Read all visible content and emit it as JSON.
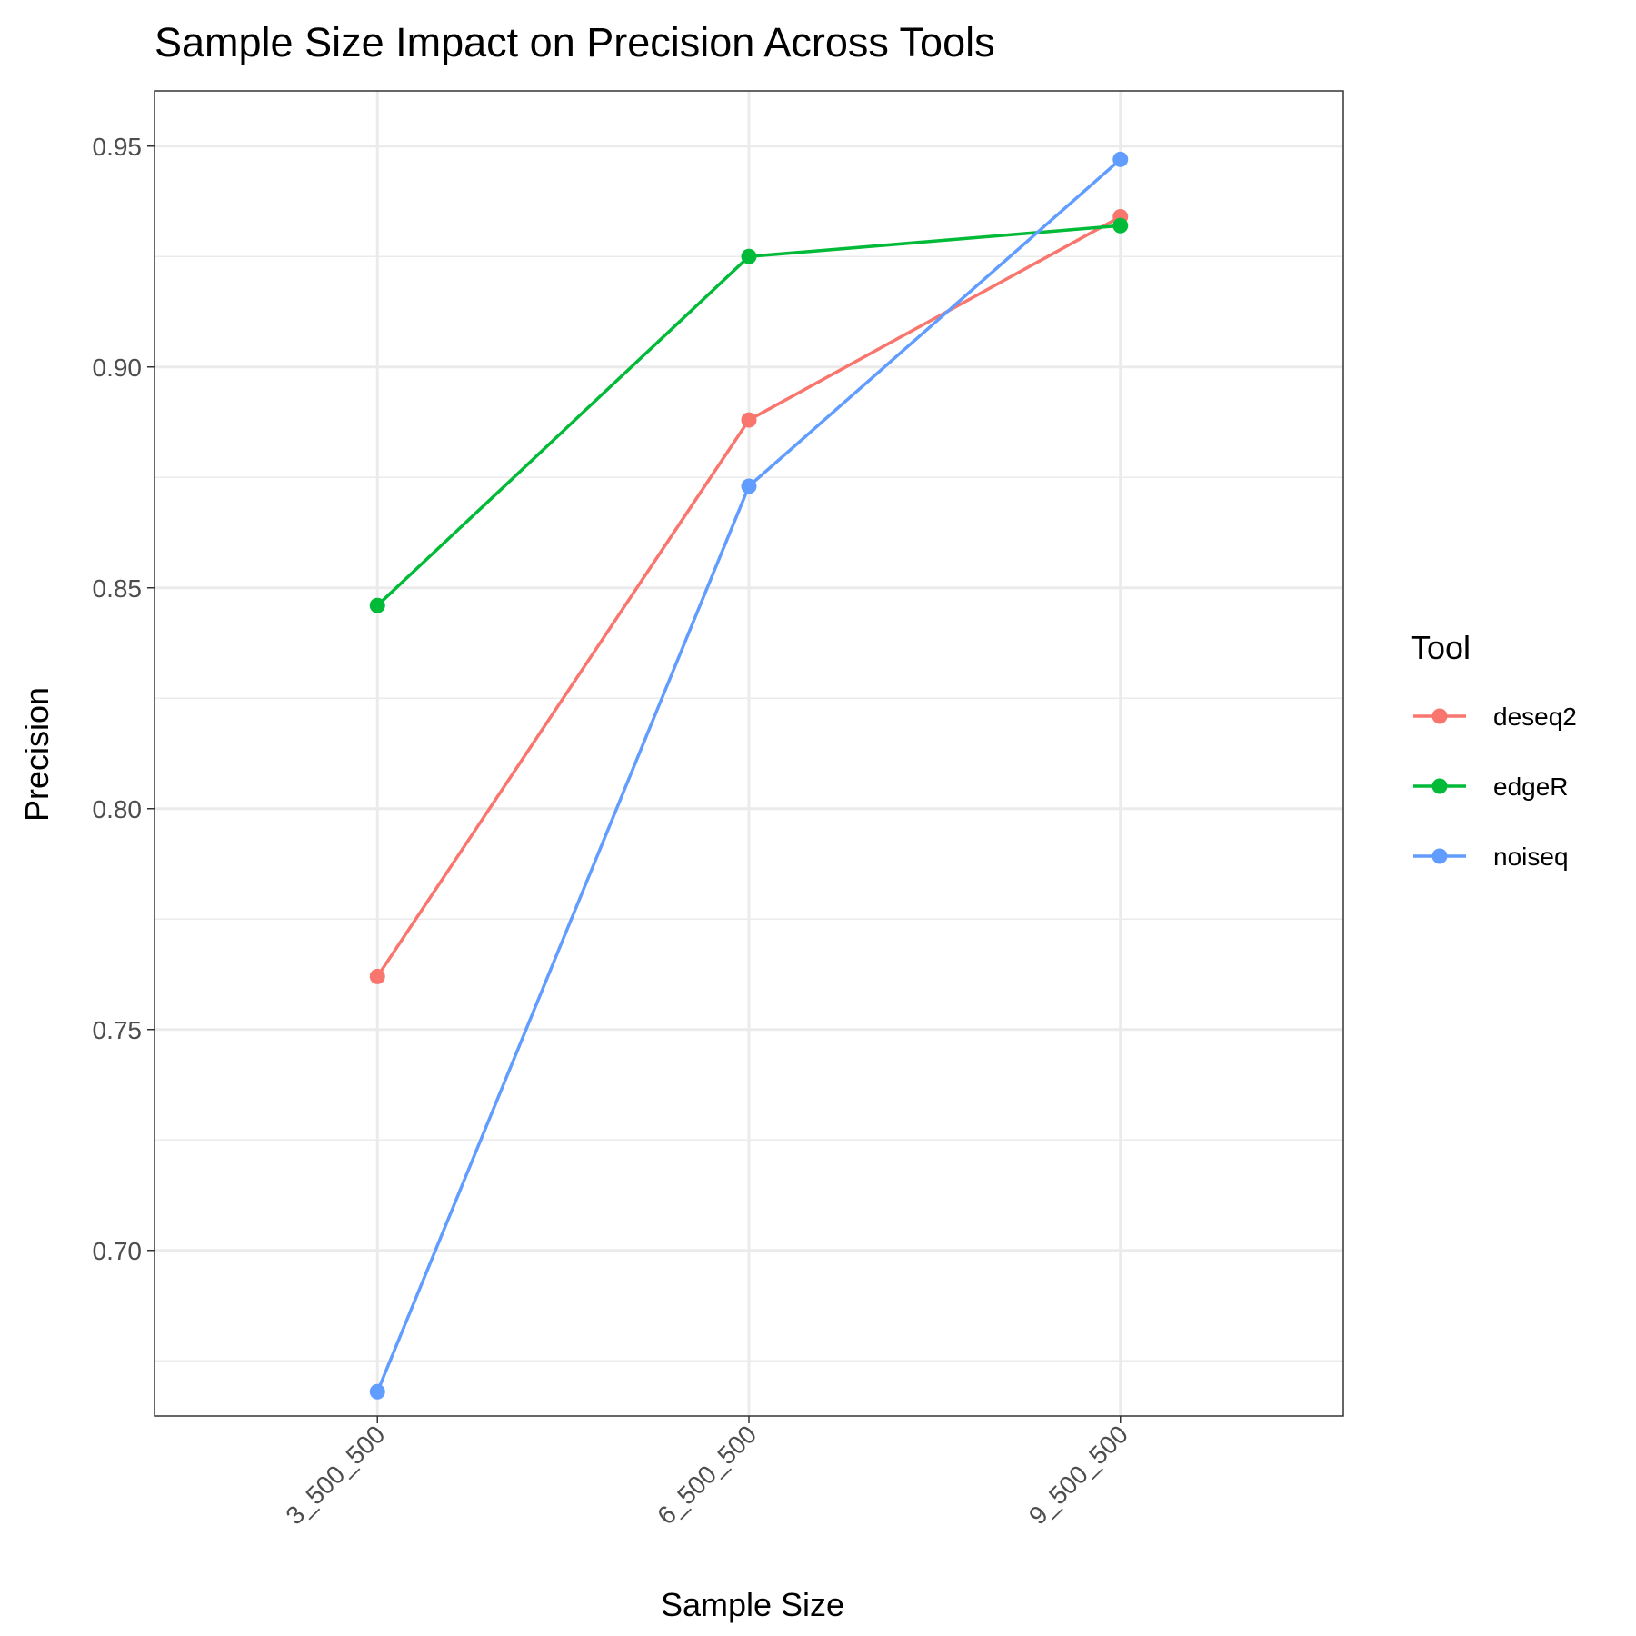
{
  "chart_data": {
    "type": "line",
    "title": "Sample Size Impact on Precision Across Tools",
    "xlabel": "Sample Size",
    "ylabel": "Precision",
    "categories": [
      "3_500_500",
      "6_500_500",
      "9_500_500"
    ],
    "ylim": [
      0.6625,
      0.9625
    ],
    "yticks": [
      0.7,
      0.75,
      0.8,
      0.85,
      0.9,
      0.95
    ],
    "ytick_labels": [
      "0.70",
      "0.75",
      "0.80",
      "0.85",
      "0.90",
      "0.95"
    ],
    "grid": true,
    "legend": {
      "title": "Tool",
      "position": "right"
    },
    "series": [
      {
        "name": "deseq2",
        "color": "#F8766D",
        "values": [
          0.762,
          0.888,
          0.934
        ]
      },
      {
        "name": "edgeR",
        "color": "#00BA38",
        "values": [
          0.846,
          0.925,
          0.932
        ]
      },
      {
        "name": "noiseq",
        "color": "#619CFF",
        "values": [
          0.668,
          0.873,
          0.947
        ]
      }
    ]
  }
}
